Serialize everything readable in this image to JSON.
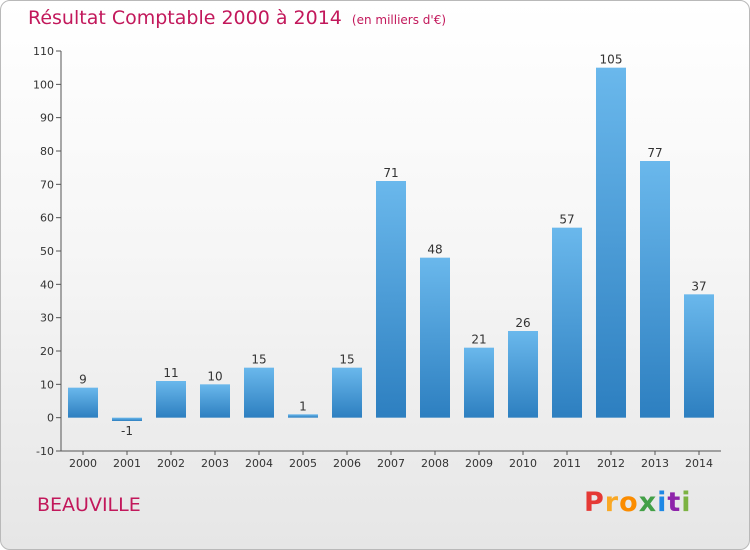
{
  "header": {
    "title": "Résultat Comptable 2000 à 2014",
    "unit": "(en milliers d'€)"
  },
  "commune": "BEAUVILLE",
  "logo": {
    "letters": [
      "P",
      "r",
      "o",
      "x",
      "i",
      "t",
      "i"
    ],
    "colors": [
      "#e53935",
      "#f9a825",
      "#fb8c00",
      "#43a047",
      "#1e88e5",
      "#8e24aa",
      "#7cb342"
    ]
  },
  "colors": {
    "bar_light": "#6ab8ec",
    "bar_dark": "#2d7fc0",
    "title": "#c2185b"
  },
  "chart_data": {
    "type": "bar",
    "title": "Résultat Comptable 2000 à 2014",
    "subtitle": "(en milliers d'€)",
    "categories": [
      "2000",
      "2001",
      "2002",
      "2003",
      "2004",
      "2005",
      "2006",
      "2007",
      "2008",
      "2009",
      "2010",
      "2011",
      "2012",
      "2013",
      "2014"
    ],
    "values": [
      9,
      -1,
      11,
      10,
      15,
      1,
      15,
      71,
      48,
      21,
      26,
      57,
      105,
      77,
      37
    ],
    "ylim": [
      -10,
      110
    ],
    "yticks": [
      -10,
      0,
      10,
      20,
      30,
      40,
      50,
      60,
      70,
      80,
      90,
      100,
      110
    ],
    "grid": false
  }
}
